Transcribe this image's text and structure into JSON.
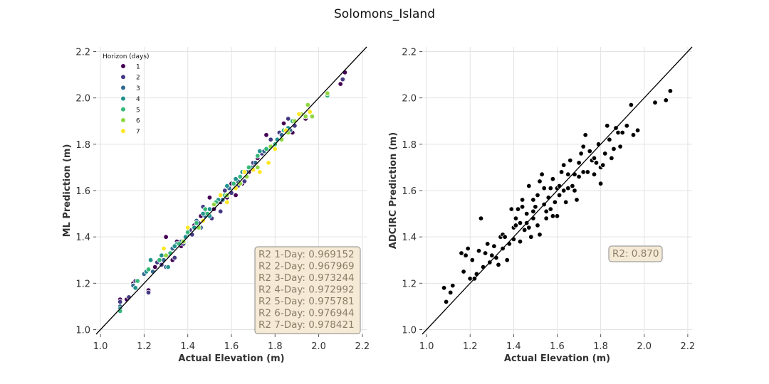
{
  "title": "Solomons_Island",
  "colors": {
    "viridis": [
      "#440154",
      "#443983",
      "#31688e",
      "#21918c",
      "#35b779",
      "#90d743",
      "#fde725"
    ],
    "black": "#000000",
    "box_fill": "#f5ead6",
    "box_edge": "#8a8a8a"
  },
  "chart_data": [
    {
      "type": "scatter",
      "id": "ml",
      "xlabel": "Actual Elevation (m)",
      "ylabel": "ML Prediction (m)",
      "xlim": [
        0.98,
        2.22
      ],
      "ylim": [
        0.98,
        2.22
      ],
      "xticks": [
        "1.0",
        "1.2",
        "1.4",
        "1.6",
        "1.8",
        "2.0",
        "2.2"
      ],
      "yticks": [
        "1.0",
        "1.2",
        "1.4",
        "1.6",
        "1.8",
        "2.0",
        "2.2"
      ],
      "grid": true,
      "legend": {
        "placement": "top-left",
        "title": "Horizon (days)",
        "entries": [
          "1",
          "2",
          "3",
          "4",
          "5",
          "6",
          "7"
        ]
      },
      "reference_line": "y = x",
      "stats": [
        "R2 1-Day: 0.969152",
        "R2 2-Day: 0.967969",
        "R2 3-Day: 0.973244",
        "R2 4-Day: 0.972992",
        "R2 5-Day: 0.975781",
        "R2 6-Day: 0.976944",
        "R2 7-Day: 0.978421"
      ],
      "series": [
        {
          "horizon": 1,
          "points": [
            [
              1.09,
              1.13
            ],
            [
              1.12,
              1.13
            ],
            [
              1.15,
              1.2
            ],
            [
              1.22,
              1.17
            ],
            [
              1.25,
              1.27
            ],
            [
              1.3,
              1.4
            ],
            [
              1.33,
              1.3
            ],
            [
              1.37,
              1.36
            ],
            [
              1.4,
              1.42
            ],
            [
              1.43,
              1.45
            ],
            [
              1.48,
              1.51
            ],
            [
              1.5,
              1.57
            ],
            [
              1.52,
              1.52
            ],
            [
              1.55,
              1.55
            ],
            [
              1.58,
              1.57
            ],
            [
              1.62,
              1.58
            ],
            [
              1.65,
              1.63
            ],
            [
              1.68,
              1.68
            ],
            [
              1.72,
              1.74
            ],
            [
              1.76,
              1.84
            ],
            [
              1.8,
              1.8
            ],
            [
              1.84,
              1.89
            ],
            [
              1.88,
              1.85
            ],
            [
              1.94,
              1.91
            ],
            [
              2.1,
              2.06
            ],
            [
              2.12,
              2.11
            ],
            [
              1.46,
              1.49
            ],
            [
              1.6,
              1.63
            ],
            [
              1.35,
              1.38
            ],
            [
              1.7,
              1.71
            ]
          ]
        },
        {
          "horizon": 2,
          "points": [
            [
              1.09,
              1.12
            ],
            [
              1.13,
              1.14
            ],
            [
              1.16,
              1.21
            ],
            [
              1.22,
              1.16
            ],
            [
              1.26,
              1.29
            ],
            [
              1.31,
              1.32
            ],
            [
              1.34,
              1.31
            ],
            [
              1.38,
              1.37
            ],
            [
              1.41,
              1.43
            ],
            [
              1.45,
              1.46
            ],
            [
              1.47,
              1.53
            ],
            [
              1.51,
              1.48
            ],
            [
              1.53,
              1.55
            ],
            [
              1.57,
              1.6
            ],
            [
              1.6,
              1.59
            ],
            [
              1.63,
              1.62
            ],
            [
              1.66,
              1.64
            ],
            [
              1.7,
              1.72
            ],
            [
              1.74,
              1.76
            ],
            [
              1.78,
              1.82
            ],
            [
              1.82,
              1.85
            ],
            [
              1.86,
              1.91
            ],
            [
              1.89,
              1.88
            ],
            [
              2.11,
              2.08
            ],
            [
              1.55,
              1.51
            ],
            [
              1.42,
              1.41
            ],
            [
              1.28,
              1.28
            ],
            [
              1.67,
              1.66
            ]
          ]
        },
        {
          "horizon": 3,
          "points": [
            [
              1.09,
              1.1
            ],
            [
              1.15,
              1.19
            ],
            [
              1.2,
              1.24
            ],
            [
              1.24,
              1.25
            ],
            [
              1.29,
              1.3
            ],
            [
              1.33,
              1.35
            ],
            [
              1.37,
              1.38
            ],
            [
              1.4,
              1.41
            ],
            [
              1.44,
              1.47
            ],
            [
              1.48,
              1.49
            ],
            [
              1.52,
              1.54
            ],
            [
              1.56,
              1.56
            ],
            [
              1.59,
              1.61
            ],
            [
              1.63,
              1.64
            ],
            [
              1.67,
              1.68
            ],
            [
              1.71,
              1.72
            ],
            [
              1.75,
              1.77
            ],
            [
              1.79,
              1.79
            ],
            [
              1.83,
              1.84
            ],
            [
              1.87,
              1.86
            ],
            [
              1.3,
              1.27
            ],
            [
              1.46,
              1.44
            ]
          ]
        },
        {
          "horizon": 4,
          "points": [
            [
              1.09,
              1.09
            ],
            [
              1.16,
              1.18
            ],
            [
              1.21,
              1.25
            ],
            [
              1.23,
              1.3
            ],
            [
              1.28,
              1.32
            ],
            [
              1.31,
              1.27
            ],
            [
              1.35,
              1.37
            ],
            [
              1.39,
              1.4
            ],
            [
              1.43,
              1.44
            ],
            [
              1.47,
              1.5
            ],
            [
              1.5,
              1.52
            ],
            [
              1.54,
              1.56
            ],
            [
              1.58,
              1.62
            ],
            [
              1.62,
              1.65
            ],
            [
              1.65,
              1.68
            ],
            [
              1.69,
              1.7
            ],
            [
              1.73,
              1.77
            ],
            [
              1.77,
              1.78
            ],
            [
              1.81,
              1.82
            ],
            [
              1.86,
              1.87
            ],
            [
              1.5,
              1.49
            ],
            [
              1.34,
              1.36
            ]
          ]
        },
        {
          "horizon": 5,
          "points": [
            [
              1.09,
              1.08
            ],
            [
              1.17,
              1.21
            ],
            [
              1.22,
              1.26
            ],
            [
              1.27,
              1.3
            ],
            [
              1.32,
              1.33
            ],
            [
              1.36,
              1.37
            ],
            [
              1.4,
              1.42
            ],
            [
              1.44,
              1.46
            ],
            [
              1.49,
              1.5
            ],
            [
              1.53,
              1.55
            ],
            [
              1.57,
              1.58
            ],
            [
              1.61,
              1.63
            ],
            [
              1.64,
              1.66
            ],
            [
              1.68,
              1.7
            ],
            [
              1.72,
              1.75
            ],
            [
              1.76,
              1.78
            ],
            [
              1.8,
              1.8
            ],
            [
              1.84,
              1.86
            ],
            [
              1.88,
              1.9
            ],
            [
              2.04,
              2.01
            ],
            [
              1.48,
              1.52
            ]
          ]
        },
        {
          "horizon": 6,
          "points": [
            [
              1.3,
              1.32
            ],
            [
              1.38,
              1.38
            ],
            [
              1.45,
              1.44
            ],
            [
              1.52,
              1.54
            ],
            [
              1.58,
              1.58
            ],
            [
              1.64,
              1.63
            ],
            [
              1.67,
              1.66
            ],
            [
              1.72,
              1.7
            ],
            [
              1.78,
              1.79
            ],
            [
              1.83,
              1.82
            ],
            [
              1.89,
              1.9
            ],
            [
              1.94,
              1.92
            ],
            [
              1.95,
              1.97
            ],
            [
              1.97,
              1.92
            ],
            [
              2.04,
              2.02
            ],
            [
              1.92,
              1.93
            ],
            [
              1.86,
              1.85
            ]
          ]
        },
        {
          "horizon": 7,
          "points": [
            [
              1.29,
              1.35
            ],
            [
              1.4,
              1.44
            ],
            [
              1.47,
              1.47
            ],
            [
              1.55,
              1.58
            ],
            [
              1.62,
              1.61
            ],
            [
              1.66,
              1.68
            ],
            [
              1.7,
              1.69
            ],
            [
              1.73,
              1.68
            ],
            [
              1.77,
              1.72
            ],
            [
              1.8,
              1.78
            ],
            [
              1.85,
              1.86
            ],
            [
              1.91,
              1.93
            ],
            [
              1.96,
              1.94
            ],
            [
              1.58,
              1.55
            ]
          ]
        }
      ]
    },
    {
      "type": "scatter",
      "id": "adcirc",
      "xlabel": "Actual Elevation (m)",
      "ylabel": "ADCIRC Prediction (m)",
      "xlim": [
        0.98,
        2.22
      ],
      "ylim": [
        0.98,
        2.22
      ],
      "xticks": [
        "1.0",
        "1.2",
        "1.4",
        "1.6",
        "1.8",
        "2.0",
        "2.2"
      ],
      "yticks": [
        "1.0",
        "1.2",
        "1.4",
        "1.6",
        "1.8",
        "2.0",
        "2.2"
      ],
      "grid": true,
      "reference_line": "y = x",
      "stats": [
        "R2: 0.870"
      ],
      "points": [
        [
          1.08,
          1.18
        ],
        [
          1.09,
          1.12
        ],
        [
          1.11,
          1.16
        ],
        [
          1.12,
          1.19
        ],
        [
          1.16,
          1.33
        ],
        [
          1.17,
          1.25
        ],
        [
          1.18,
          1.32
        ],
        [
          1.19,
          1.35
        ],
        [
          1.2,
          1.22
        ],
        [
          1.21,
          1.3
        ],
        [
          1.22,
          1.22
        ],
        [
          1.23,
          1.24
        ],
        [
          1.24,
          1.34
        ],
        [
          1.25,
          1.48
        ],
        [
          1.26,
          1.27
        ],
        [
          1.27,
          1.33
        ],
        [
          1.28,
          1.37
        ],
        [
          1.29,
          1.29
        ],
        [
          1.3,
          1.32
        ],
        [
          1.31,
          1.36
        ],
        [
          1.32,
          1.31
        ],
        [
          1.33,
          1.28
        ],
        [
          1.34,
          1.4
        ],
        [
          1.35,
          1.41
        ],
        [
          1.37,
          1.3
        ],
        [
          1.38,
          1.37
        ],
        [
          1.39,
          1.52
        ],
        [
          1.4,
          1.44
        ],
        [
          1.4,
          1.39
        ],
        [
          1.41,
          1.48
        ],
        [
          1.42,
          1.52
        ],
        [
          1.43,
          1.46
        ],
        [
          1.43,
          1.38
        ],
        [
          1.44,
          1.53
        ],
        [
          1.45,
          1.43
        ],
        [
          1.46,
          1.5
        ],
        [
          1.46,
          1.46
        ],
        [
          1.47,
          1.62
        ],
        [
          1.48,
          1.4
        ],
        [
          1.49,
          1.51
        ],
        [
          1.49,
          1.48
        ],
        [
          1.5,
          1.53
        ],
        [
          1.51,
          1.45
        ],
        [
          1.51,
          1.58
        ],
        [
          1.52,
          1.41
        ],
        [
          1.53,
          1.67
        ],
        [
          1.54,
          1.54
        ],
        [
          1.54,
          1.61
        ],
        [
          1.55,
          1.48
        ],
        [
          1.56,
          1.57
        ],
        [
          1.57,
          1.52
        ],
        [
          1.57,
          1.61
        ],
        [
          1.58,
          1.65
        ],
        [
          1.59,
          1.55
        ],
        [
          1.6,
          1.61
        ],
        [
          1.6,
          1.49
        ],
        [
          1.61,
          1.58
        ],
        [
          1.62,
          1.68
        ],
        [
          1.63,
          1.6
        ],
        [
          1.64,
          1.55
        ],
        [
          1.65,
          1.67
        ],
        [
          1.66,
          1.73
        ],
        [
          1.67,
          1.62
        ],
        [
          1.68,
          1.6
        ],
        [
          1.68,
          1.67
        ],
        [
          1.69,
          1.56
        ],
        [
          1.7,
          1.72
        ],
        [
          1.71,
          1.76
        ],
        [
          1.72,
          1.68
        ],
        [
          1.73,
          1.84
        ],
        [
          1.74,
          1.68
        ],
        [
          1.75,
          1.77
        ],
        [
          1.76,
          1.73
        ],
        [
          1.77,
          1.67
        ],
        [
          1.78,
          1.72
        ],
        [
          1.79,
          1.8
        ],
        [
          1.8,
          1.7
        ],
        [
          1.8,
          1.63
        ],
        [
          1.81,
          1.71
        ],
        [
          1.82,
          1.76
        ],
        [
          1.83,
          1.88
        ],
        [
          1.84,
          1.82
        ],
        [
          1.85,
          1.74
        ],
        [
          1.86,
          1.78
        ],
        [
          1.87,
          1.87
        ],
        [
          1.88,
          1.85
        ],
        [
          1.89,
          1.79
        ],
        [
          1.9,
          1.85
        ],
        [
          1.92,
          1.88
        ],
        [
          1.94,
          1.97
        ],
        [
          1.95,
          1.84
        ],
        [
          1.97,
          1.86
        ],
        [
          2.05,
          1.98
        ],
        [
          2.1,
          1.99
        ],
        [
          2.12,
          2.03
        ],
        [
          1.36,
          1.4
        ],
        [
          1.44,
          1.56
        ],
        [
          1.52,
          1.64
        ],
        [
          1.58,
          1.49
        ],
        [
          1.65,
          1.61
        ],
        [
          1.72,
          1.79
        ],
        [
          1.77,
          1.74
        ],
        [
          1.47,
          1.44
        ],
        [
          1.55,
          1.51
        ],
        [
          1.61,
          1.62
        ],
        [
          1.35,
          1.35
        ],
        [
          1.41,
          1.45
        ],
        [
          1.49,
          1.56
        ],
        [
          1.63,
          1.71
        ],
        [
          1.7,
          1.66
        ]
      ]
    }
  ]
}
